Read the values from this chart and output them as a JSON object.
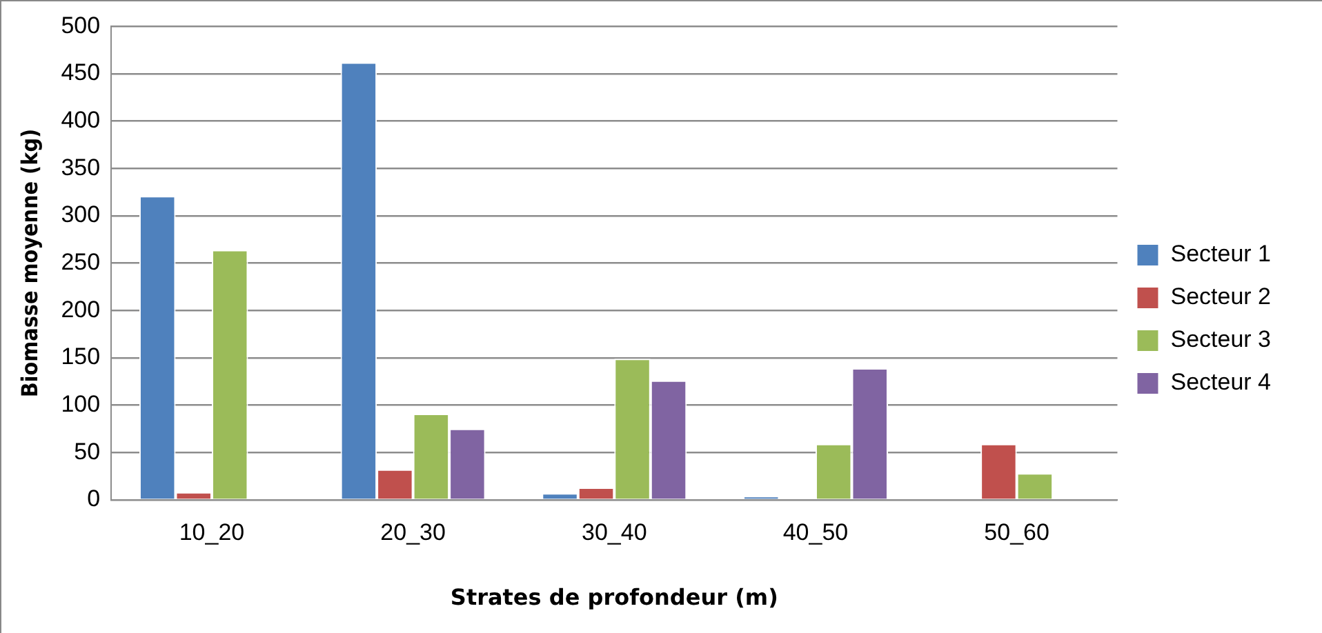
{
  "chart_data": {
    "type": "bar",
    "xlabel": "Strates de profondeur (m)",
    "ylabel": "Biomasse moyenne (kg)",
    "categories": [
      "10_20",
      "20_30",
      "30_40",
      "40_50",
      "50_60"
    ],
    "series": [
      {
        "name": "Secteur 1",
        "color": "#4f81bd",
        "values": [
          321,
          462,
          7,
          4,
          null
        ]
      },
      {
        "name": "Secteur 2",
        "color": "#c0504d",
        "values": [
          8,
          32,
          13,
          null,
          59
        ]
      },
      {
        "name": "Secteur 3",
        "color": "#9bbb59",
        "values": [
          264,
          91,
          149,
          59,
          28
        ]
      },
      {
        "name": "Secteur 4",
        "color": "#8064a2",
        "values": [
          null,
          75,
          126,
          139,
          null
        ]
      }
    ],
    "ylim": [
      0,
      500
    ],
    "yticks": [
      0,
      50,
      100,
      150,
      200,
      250,
      300,
      350,
      400,
      450,
      500
    ],
    "grid": "y",
    "legend": "right"
  }
}
